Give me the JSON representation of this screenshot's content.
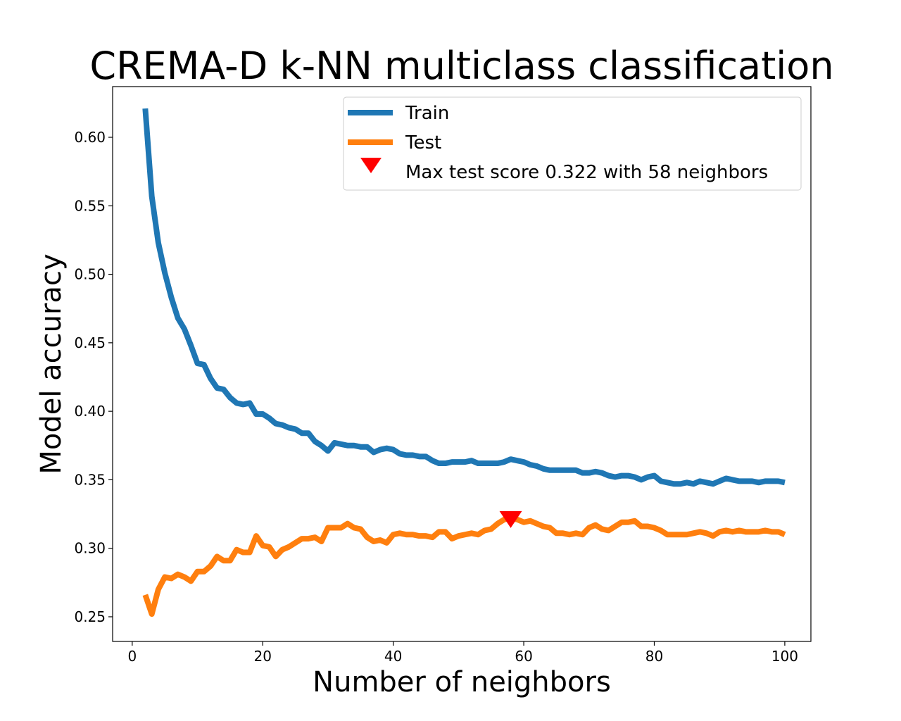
{
  "chart_data": {
    "type": "line",
    "title": "CREMA-D k-NN multiclass classification",
    "xlabel": "Number of neighbors",
    "ylabel": "Model accuracy",
    "xlim": [
      -3,
      104
    ],
    "ylim": [
      0.232,
      0.637
    ],
    "xticks": [
      0,
      20,
      40,
      60,
      80,
      100
    ],
    "yticks": [
      0.25,
      0.3,
      0.35,
      0.4,
      0.45,
      0.5,
      0.55,
      0.6
    ],
    "ytick_labels": [
      "0.25",
      "0.30",
      "0.35",
      "0.40",
      "0.45",
      "0.50",
      "0.55",
      "0.60"
    ],
    "grid": false,
    "legend_position": "top-right",
    "x": [
      2,
      3,
      4,
      5,
      6,
      7,
      8,
      9,
      10,
      11,
      12,
      13,
      14,
      15,
      16,
      17,
      18,
      19,
      20,
      21,
      22,
      23,
      24,
      25,
      26,
      27,
      28,
      29,
      30,
      31,
      32,
      33,
      34,
      35,
      36,
      37,
      38,
      39,
      40,
      41,
      42,
      43,
      44,
      45,
      46,
      47,
      48,
      49,
      50,
      51,
      52,
      53,
      54,
      55,
      56,
      57,
      58,
      59,
      60,
      61,
      62,
      63,
      64,
      65,
      66,
      67,
      68,
      69,
      70,
      71,
      72,
      73,
      74,
      75,
      76,
      77,
      78,
      79,
      80,
      81,
      82,
      83,
      84,
      85,
      86,
      87,
      88,
      89,
      90,
      91,
      92,
      93,
      94,
      95,
      96,
      97,
      98,
      99,
      100
    ],
    "series": [
      {
        "name": "Train",
        "color": "#1f77b4",
        "values": [
          0.621,
          0.557,
          0.523,
          0.501,
          0.483,
          0.468,
          0.46,
          0.448,
          0.435,
          0.434,
          0.424,
          0.417,
          0.416,
          0.41,
          0.406,
          0.405,
          0.406,
          0.398,
          0.398,
          0.395,
          0.391,
          0.39,
          0.388,
          0.387,
          0.384,
          0.384,
          0.378,
          0.375,
          0.371,
          0.377,
          0.376,
          0.375,
          0.375,
          0.374,
          0.374,
          0.37,
          0.372,
          0.373,
          0.372,
          0.369,
          0.368,
          0.368,
          0.367,
          0.367,
          0.364,
          0.362,
          0.362,
          0.363,
          0.363,
          0.363,
          0.364,
          0.362,
          0.362,
          0.362,
          0.362,
          0.363,
          0.365,
          0.364,
          0.363,
          0.361,
          0.36,
          0.358,
          0.357,
          0.357,
          0.357,
          0.357,
          0.357,
          0.355,
          0.355,
          0.356,
          0.355,
          0.353,
          0.352,
          0.353,
          0.353,
          0.352,
          0.35,
          0.352,
          0.353,
          0.349,
          0.348,
          0.347,
          0.347,
          0.348,
          0.347,
          0.349,
          0.348,
          0.347,
          0.349,
          0.351,
          0.35,
          0.349,
          0.349,
          0.349,
          0.348,
          0.349,
          0.349,
          0.349,
          0.348
        ]
      },
      {
        "name": "Test",
        "color": "#ff7f0e",
        "values": [
          0.266,
          0.252,
          0.27,
          0.279,
          0.278,
          0.281,
          0.279,
          0.276,
          0.283,
          0.283,
          0.287,
          0.294,
          0.291,
          0.291,
          0.299,
          0.297,
          0.297,
          0.309,
          0.302,
          0.301,
          0.294,
          0.299,
          0.301,
          0.304,
          0.307,
          0.307,
          0.308,
          0.305,
          0.315,
          0.315,
          0.315,
          0.318,
          0.315,
          0.314,
          0.308,
          0.305,
          0.306,
          0.304,
          0.31,
          0.311,
          0.31,
          0.31,
          0.309,
          0.309,
          0.308,
          0.312,
          0.312,
          0.307,
          0.309,
          0.31,
          0.311,
          0.31,
          0.313,
          0.314,
          0.318,
          0.321,
          0.322,
          0.321,
          0.319,
          0.32,
          0.318,
          0.316,
          0.315,
          0.311,
          0.311,
          0.31,
          0.311,
          0.31,
          0.315,
          0.317,
          0.314,
          0.313,
          0.316,
          0.319,
          0.319,
          0.32,
          0.316,
          0.316,
          0.315,
          0.313,
          0.31,
          0.31,
          0.31,
          0.31,
          0.311,
          0.312,
          0.311,
          0.309,
          0.312,
          0.313,
          0.312,
          0.313,
          0.312,
          0.312,
          0.312,
          0.313,
          0.312,
          0.312,
          0.31
        ]
      }
    ],
    "annotation": {
      "label": "Max test score 0.322 with 58 neighbors",
      "x": 58,
      "y": 0.322,
      "marker": "triangle-down",
      "color": "#ff0000"
    }
  }
}
